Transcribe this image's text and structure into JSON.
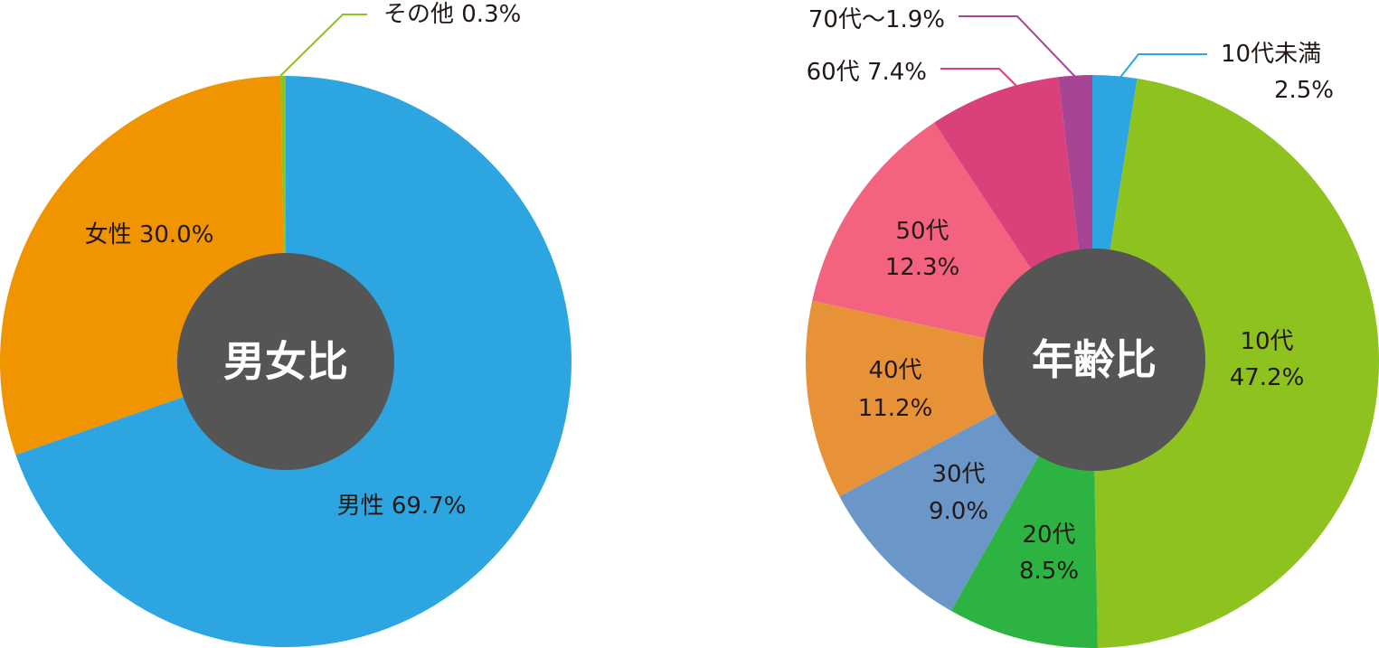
{
  "chart_data": [
    {
      "type": "pie",
      "title": "男女比",
      "slices": [
        {
          "label": "男性",
          "value": 69.7,
          "display": "男性 69.7%",
          "color": "#2ca5e0"
        },
        {
          "label": "女性",
          "value": 30.0,
          "display": "女性 30.0%",
          "color": "#f09400"
        },
        {
          "label": "その他",
          "value": 0.3,
          "display": "その他  0.3%",
          "color": "#8dc21f"
        }
      ],
      "leader_line_color": "#8dc21f"
    },
    {
      "type": "pie",
      "title": "年齢比",
      "slices": [
        {
          "label": "10代未満",
          "value": 2.5,
          "display": [
            "10代未満",
            "2.5%"
          ],
          "color": "#2ca5e0"
        },
        {
          "label": "10代",
          "value": 47.2,
          "display": [
            "10代",
            "47.2%"
          ],
          "color": "#8dc21f"
        },
        {
          "label": "20代",
          "value": 8.5,
          "display": [
            "20代",
            "8.5%"
          ],
          "color": "#2db341"
        },
        {
          "label": "30代",
          "value": 9.0,
          "display": [
            "30代",
            "9.0%"
          ],
          "color": "#6a96c8"
        },
        {
          "label": "40代",
          "value": 11.2,
          "display": [
            "40代",
            "11.2%"
          ],
          "color": "#e89238"
        },
        {
          "label": "50代",
          "value": 12.3,
          "display": [
            "50代",
            "12.3%"
          ],
          "color": "#f36380"
        },
        {
          "label": "60代",
          "value": 7.4,
          "display": "60代 7.4%",
          "color": "#da4079"
        },
        {
          "label": "70代〜",
          "value": 1.9,
          "display": "70代〜1.9%",
          "color": "#a54594"
        }
      ]
    }
  ],
  "center_circle_color": "#555555"
}
